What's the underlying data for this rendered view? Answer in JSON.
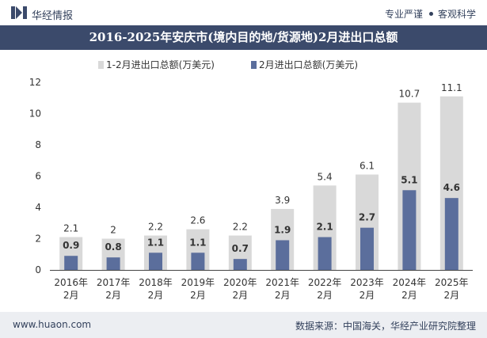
{
  "header": {
    "brand": "华经情报",
    "tagline_left": "专业严谨",
    "tagline_right": "客观科学"
  },
  "title": "2016-2025年安庆市(境内目的地/货源地)2月进出口总额",
  "footer": {
    "site": "www.huaon.com",
    "source": "数据来源：中国海关，华经产业研究院整理"
  },
  "colors": {
    "header_bg": "#3b4a6b",
    "series_total": "#d9d9d9",
    "series_feb": "#5b6e9c"
  },
  "chart_data": {
    "type": "bar",
    "categories": [
      "2016年2月",
      "2017年2月",
      "2018年2月",
      "2019年2月",
      "2020年2月",
      "2021年2月",
      "2022年2月",
      "2023年2月",
      "2024年2月",
      "2025年2月"
    ],
    "category_lines": [
      [
        "2016年",
        "2月"
      ],
      [
        "2017年",
        "2月"
      ],
      [
        "2018年",
        "2月"
      ],
      [
        "2019年",
        "2月"
      ],
      [
        "2020年",
        "2月"
      ],
      [
        "2021年",
        "2月"
      ],
      [
        "2022年",
        "2月"
      ],
      [
        "2023年",
        "2月"
      ],
      [
        "2024年",
        "2月"
      ],
      [
        "2025年",
        "2月"
      ]
    ],
    "series": [
      {
        "name": "1-2月进出口总额(万美元)",
        "values": [
          2.1,
          2,
          2.2,
          2.6,
          2.2,
          3.9,
          5.4,
          6.1,
          10.7,
          11.1
        ],
        "labels": [
          "2.1",
          "2",
          "2.2",
          "2.6",
          "2.2",
          "3.9",
          "5.4",
          "6.1",
          "10.7",
          "11.1"
        ]
      },
      {
        "name": "2月进出口总额(万美元)",
        "values": [
          0.9,
          0.8,
          1.1,
          1.1,
          0.7,
          1.9,
          2.1,
          2.7,
          5.1,
          4.6
        ],
        "labels": [
          "0.9",
          "0.8",
          "1.1",
          "1.1",
          "0.7",
          "1.9",
          "2.1",
          "2.7",
          "5.1",
          "4.6"
        ]
      }
    ],
    "yticks": [
      "0",
      "2",
      "4",
      "6",
      "8",
      "10",
      "12"
    ],
    "ylim": [
      0,
      12
    ],
    "grid": false,
    "legend": "top-center",
    "overlap": true
  }
}
